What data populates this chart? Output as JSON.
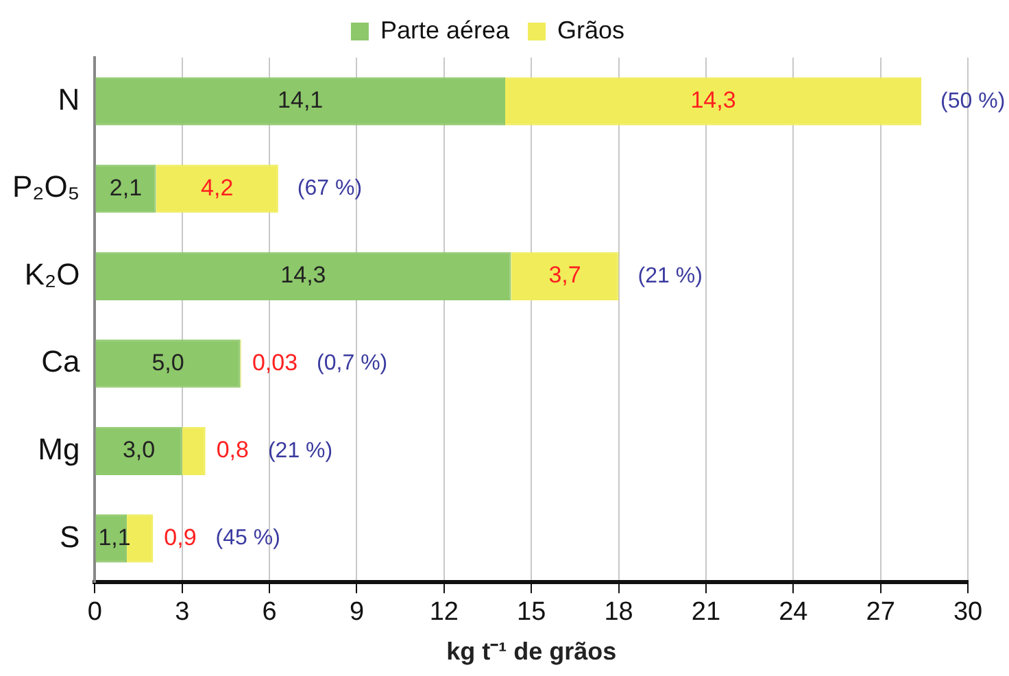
{
  "chart_data": {
    "type": "bar",
    "orientation": "horizontal",
    "stacked": true,
    "xlabel": "kg t⁻¹ de grãos",
    "categories": [
      "N",
      "P₂O₅",
      "K₂O",
      "Ca",
      "Mg",
      "S"
    ],
    "series": [
      {
        "name": "Parte aérea",
        "color": "#8dc86a",
        "values": [
          14.1,
          2.1,
          14.3,
          5.0,
          3.0,
          1.1
        ],
        "value_labels": [
          "14,1",
          "2,1",
          "14,3",
          "5,0",
          "3,0",
          "1,1"
        ]
      },
      {
        "name": "Grãos",
        "color": "#f0ec5a",
        "values": [
          14.3,
          4.2,
          3.7,
          0.03,
          0.8,
          0.9
        ],
        "value_labels": [
          "14,3",
          "4,2",
          "3,7",
          "0,03",
          "0,8",
          "0,9"
        ]
      }
    ],
    "annotations": [
      "(50 %)",
      "(67 %)",
      "(21 %)",
      "(0,7 %)",
      "(21 %)",
      "(45 %)"
    ],
    "xlim": [
      0,
      30
    ],
    "xticks": [
      0,
      3,
      6,
      9,
      12,
      15,
      18,
      21,
      24,
      27,
      30
    ],
    "grid": "x",
    "legend": "top"
  }
}
